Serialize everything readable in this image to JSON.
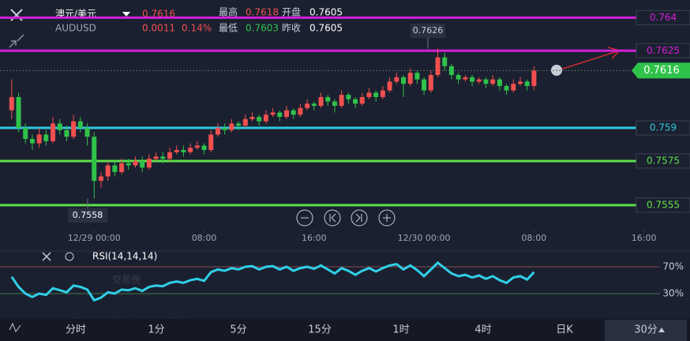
{
  "header": {
    "title": "澳元/美元",
    "symbol": "AUDUSD",
    "price": 0.7616,
    "change": 0.0011,
    "change_pct": "0.14%",
    "stats": [
      {
        "label": "最高",
        "value": 0.7618
      },
      {
        "label": "开盘",
        "value": 0.7605
      },
      {
        "label": "最低",
        "value": 0.7603
      },
      {
        "label": "昨收",
        "value": 0.7605
      }
    ]
  },
  "chart_data": {
    "type": "candlestick",
    "up_color": "#f0504f",
    "down_color": "#2fc24a",
    "xlim": [
      -1.7,
      98.7
    ],
    "ylim": [
      0.7546,
      0.7648
    ],
    "xticks": [
      {
        "value": 12,
        "label": "12/29 00:00"
      },
      {
        "value": 28,
        "label": "08:00"
      },
      {
        "value": 44,
        "label": "16:00"
      },
      {
        "value": 60,
        "label": "12/30 00:00"
      },
      {
        "value": 76,
        "label": "08:00"
      },
      {
        "value": 92,
        "label": "16:00"
      }
    ],
    "candles": [
      [
        0.7598,
        0.7612,
        0.7594,
        0.7604
      ],
      [
        0.7604,
        0.7606,
        0.7588,
        0.759
      ],
      [
        0.759,
        0.7592,
        0.7583,
        0.7585
      ],
      [
        0.7585,
        0.7587,
        0.758,
        0.7583
      ],
      [
        0.7583,
        0.759,
        0.7581,
        0.7587
      ],
      [
        0.7587,
        0.7589,
        0.7582,
        0.7584
      ],
      [
        0.7584,
        0.7595,
        0.7583,
        0.7592
      ],
      [
        0.7592,
        0.7594,
        0.7587,
        0.7589
      ],
      [
        0.7589,
        0.7591,
        0.7584,
        0.7586
      ],
      [
        0.7586,
        0.7596,
        0.7585,
        0.7593
      ],
      [
        0.7593,
        0.7595,
        0.7588,
        0.759
      ],
      [
        0.759,
        0.7592,
        0.7582,
        0.7586
      ],
      [
        0.7586,
        0.7588,
        0.7558,
        0.7566
      ],
      [
        0.7566,
        0.757,
        0.7563,
        0.7568
      ],
      [
        0.7568,
        0.7575,
        0.7566,
        0.7573
      ],
      [
        0.7573,
        0.7575,
        0.7568,
        0.757
      ],
      [
        0.757,
        0.7576,
        0.7569,
        0.7574
      ],
      [
        0.7574,
        0.7576,
        0.7571,
        0.7573
      ],
      [
        0.7573,
        0.7577,
        0.7572,
        0.7575
      ],
      [
        0.7575,
        0.7577,
        0.757,
        0.7572
      ],
      [
        0.7572,
        0.7578,
        0.7571,
        0.7576
      ],
      [
        0.7576,
        0.7579,
        0.7575,
        0.7577
      ],
      [
        0.7577,
        0.7579,
        0.7574,
        0.7576
      ],
      [
        0.7576,
        0.7581,
        0.7575,
        0.7579
      ],
      [
        0.7579,
        0.7582,
        0.7578,
        0.758
      ],
      [
        0.758,
        0.7582,
        0.7577,
        0.7579
      ],
      [
        0.7579,
        0.7583,
        0.7578,
        0.7581
      ],
      [
        0.7581,
        0.7584,
        0.758,
        0.7582
      ],
      [
        0.7582,
        0.7583,
        0.7578,
        0.758
      ],
      [
        0.758,
        0.7589,
        0.7579,
        0.7587
      ],
      [
        0.7587,
        0.7592,
        0.7586,
        0.759
      ],
      [
        0.759,
        0.7592,
        0.7587,
        0.7589
      ],
      [
        0.7589,
        0.7594,
        0.7588,
        0.7592
      ],
      [
        0.7592,
        0.7593,
        0.7589,
        0.7591
      ],
      [
        0.7591,
        0.7596,
        0.759,
        0.7594
      ],
      [
        0.7594,
        0.7597,
        0.7593,
        0.7595
      ],
      [
        0.7595,
        0.7596,
        0.7591,
        0.7593
      ],
      [
        0.7593,
        0.7598,
        0.7592,
        0.7596
      ],
      [
        0.7596,
        0.7599,
        0.7595,
        0.7597
      ],
      [
        0.7597,
        0.7598,
        0.7593,
        0.7595
      ],
      [
        0.7595,
        0.76,
        0.7594,
        0.7598
      ],
      [
        0.7598,
        0.7599,
        0.7594,
        0.7596
      ],
      [
        0.7596,
        0.7601,
        0.7595,
        0.7599
      ],
      [
        0.7599,
        0.7603,
        0.7598,
        0.7601
      ],
      [
        0.7601,
        0.7602,
        0.7598,
        0.76
      ],
      [
        0.76,
        0.7606,
        0.7599,
        0.7604
      ],
      [
        0.7604,
        0.7605,
        0.76,
        0.7602
      ],
      [
        0.7602,
        0.7603,
        0.7597,
        0.76
      ],
      [
        0.76,
        0.7607,
        0.7599,
        0.7605
      ],
      [
        0.7605,
        0.7606,
        0.7601,
        0.7603
      ],
      [
        0.7603,
        0.7604,
        0.7599,
        0.7601
      ],
      [
        0.7601,
        0.7606,
        0.76,
        0.7604
      ],
      [
        0.7604,
        0.7608,
        0.7603,
        0.7606
      ],
      [
        0.7606,
        0.7607,
        0.7602,
        0.7604
      ],
      [
        0.7604,
        0.7609,
        0.7603,
        0.7607
      ],
      [
        0.7607,
        0.7613,
        0.7606,
        0.7611
      ],
      [
        0.7611,
        0.7615,
        0.761,
        0.7613
      ],
      [
        0.7613,
        0.7614,
        0.7604,
        0.761
      ],
      [
        0.761,
        0.7617,
        0.7609,
        0.7615
      ],
      [
        0.7615,
        0.7616,
        0.761,
        0.7612
      ],
      [
        0.7612,
        0.7613,
        0.7605,
        0.7607
      ],
      [
        0.7607,
        0.7616,
        0.7606,
        0.7614
      ],
      [
        0.7614,
        0.7626,
        0.7613,
        0.7622
      ],
      [
        0.7622,
        0.7624,
        0.7616,
        0.7618
      ],
      [
        0.7618,
        0.7619,
        0.7612,
        0.7614
      ],
      [
        0.7614,
        0.7615,
        0.761,
        0.7612
      ],
      [
        0.7612,
        0.7614,
        0.7611,
        0.7613
      ],
      [
        0.7613,
        0.7614,
        0.7609,
        0.7611
      ],
      [
        0.7611,
        0.7613,
        0.761,
        0.7612
      ],
      [
        0.7612,
        0.7613,
        0.7608,
        0.761
      ],
      [
        0.761,
        0.7614,
        0.7609,
        0.7612
      ],
      [
        0.7612,
        0.7613,
        0.7607,
        0.7609
      ],
      [
        0.7609,
        0.761,
        0.7605,
        0.7607
      ],
      [
        0.7607,
        0.7612,
        0.7606,
        0.761
      ],
      [
        0.761,
        0.7613,
        0.7609,
        0.7611
      ],
      [
        0.7611,
        0.7612,
        0.7607,
        0.7609
      ],
      [
        0.7609,
        0.7618,
        0.7607,
        0.7616
      ]
    ],
    "high_label": 0.7626,
    "low_label": 0.7558,
    "levels": [
      {
        "value": 0.764,
        "color": "#d21fd6"
      },
      {
        "value": 0.7625,
        "color": "#d21fd6"
      },
      {
        "value": 0.759,
        "color": "#2fc8e0"
      },
      {
        "value": 0.7575,
        "color": "#5ee04a"
      },
      {
        "value": 0.7555,
        "color": "#5ee04a"
      }
    ],
    "last_price": 0.7616,
    "rsi": {
      "title": "RSI(14,14,14)",
      "color": "#2fd0e8",
      "ylim": [
        -3,
        93.5
      ],
      "yticks": [
        {
          "value": 70,
          "label": "70%"
        },
        {
          "value": 30,
          "label": "30%"
        }
      ],
      "values": [
        55,
        40,
        30,
        25,
        30,
        28,
        38,
        35,
        32,
        42,
        40,
        36,
        20,
        24,
        32,
        30,
        36,
        35,
        38,
        34,
        40,
        42,
        41,
        46,
        48,
        46,
        50,
        52,
        49,
        62,
        66,
        64,
        68,
        66,
        70,
        71,
        66,
        70,
        71,
        66,
        70,
        64,
        68,
        70,
        67,
        72,
        66,
        60,
        68,
        64,
        58,
        64,
        68,
        63,
        68,
        72,
        74,
        66,
        72,
        65,
        56,
        66,
        76,
        68,
        60,
        56,
        58,
        54,
        57,
        52,
        56,
        50,
        46,
        54,
        56,
        51,
        62
      ]
    }
  },
  "tabs": [
    "分时",
    "1分",
    "5分",
    "15分",
    "1时",
    "4时",
    "日K",
    "30分"
  ],
  "watermark": {
    "name": "交易侠",
    "sub": "TRADER MASTER"
  }
}
